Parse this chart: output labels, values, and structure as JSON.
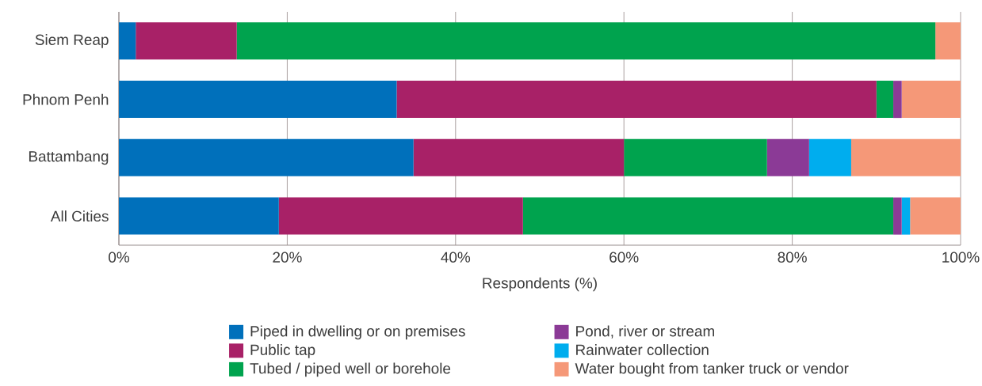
{
  "chart_data": {
    "type": "bar",
    "orientation": "horizontal",
    "stacked": true,
    "categories": [
      "Siem Reap",
      "Phnom Penh",
      "Battambang",
      "All Cities"
    ],
    "xlabel": "Respondents (%)",
    "series": [
      {
        "name": "Piped in dwelling or on premises",
        "color": "#0070bb",
        "values": [
          2,
          33,
          35,
          19
        ]
      },
      {
        "name": "Public tap",
        "color": "#a82167",
        "values": [
          12,
          57,
          25,
          29
        ]
      },
      {
        "name": "Tubed / piped well or borehole",
        "color": "#00a34e",
        "values": [
          83,
          2,
          17,
          44
        ]
      },
      {
        "name": "Pond, river or stream",
        "color": "#8b3a96",
        "values": [
          0,
          1,
          5,
          1
        ]
      },
      {
        "name": "Rainwater collection",
        "color": "#00adee",
        "values": [
          0,
          0,
          5,
          1
        ]
      },
      {
        "name": "Water bought from tanker truck or vendor",
        "color": "#f59878",
        "values": [
          3,
          7,
          13,
          6
        ]
      }
    ],
    "xlim": [
      0,
      100
    ],
    "xticks": [
      {
        "value": 0,
        "label": "0%"
      },
      {
        "value": 20,
        "label": "20%"
      },
      {
        "value": 40,
        "label": "40%"
      },
      {
        "value": 60,
        "label": "60%"
      },
      {
        "value": 80,
        "label": "80%"
      },
      {
        "value": 100,
        "label": "100%"
      }
    ],
    "grid": "x",
    "legend": "bottom"
  }
}
